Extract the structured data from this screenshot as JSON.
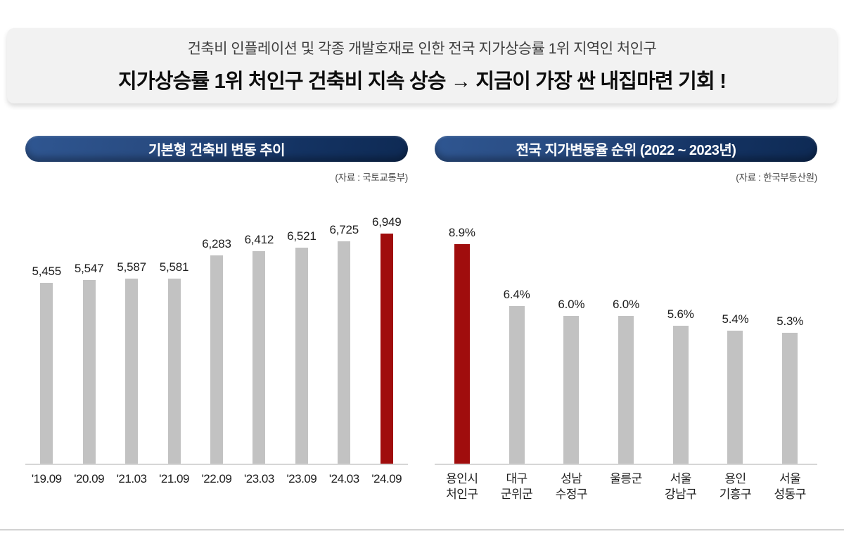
{
  "header": {
    "subtitle": "건축비 인플레이션 및 각종 개발호재로 인한 전국 지가상승률 1위 지역인 처인구",
    "title": "지가상승률 1위 처인구 건축비 지속 상승 → 지금이 가장 싼 내집마련 기회 !"
  },
  "colors": {
    "highlight_red": "#a00d0d",
    "bar_gray": "#c2c2c2",
    "pill_navy_start": "#2f5691",
    "pill_navy_end": "#0e2a54",
    "baseline_gray": "#d6d6d6"
  },
  "chart_data": [
    {
      "type": "bar",
      "title": "기본형 건축비 변동 추이",
      "source": "(자료 : 국토교통부)",
      "categories": [
        [
          "'19.09"
        ],
        [
          "'20.09"
        ],
        [
          "'21.03"
        ],
        [
          "'21.09"
        ],
        [
          "'22.09"
        ],
        [
          "'23.03"
        ],
        [
          "'23.09"
        ],
        [
          "'24.03"
        ],
        [
          "'24.09"
        ]
      ],
      "values": [
        5455,
        5547,
        5587,
        5581,
        6283,
        6412,
        6521,
        6725,
        6949
      ],
      "value_labels": [
        "5,455",
        "5,547",
        "5,587",
        "5,581",
        "6,283",
        "6,412",
        "6,521",
        "6,725",
        "6,949"
      ],
      "highlight_index": 8,
      "ylim": [
        0,
        6949
      ],
      "grid": false,
      "legend": "none"
    },
    {
      "type": "bar",
      "title": "전국 지가변동율 순위 (2022 ~ 2023년)",
      "source": "(자료 : 한국부동산원)",
      "categories": [
        [
          "용인시",
          "처인구"
        ],
        [
          "대구",
          "군위군"
        ],
        [
          "성남",
          "수정구"
        ],
        [
          "울릉군"
        ],
        [
          "서울",
          "강남구"
        ],
        [
          "용인",
          "기흥구"
        ],
        [
          "서울",
          "성동구"
        ]
      ],
      "values": [
        8.9,
        6.4,
        6.0,
        6.0,
        5.6,
        5.4,
        5.3
      ],
      "value_labels": [
        "8.9%",
        "6.4%",
        "6.0%",
        "6.0%",
        "5.6%",
        "5.4%",
        "5.3%"
      ],
      "highlight_index": 0,
      "ylim": [
        0,
        8.9
      ],
      "grid": false,
      "legend": "none"
    }
  ]
}
